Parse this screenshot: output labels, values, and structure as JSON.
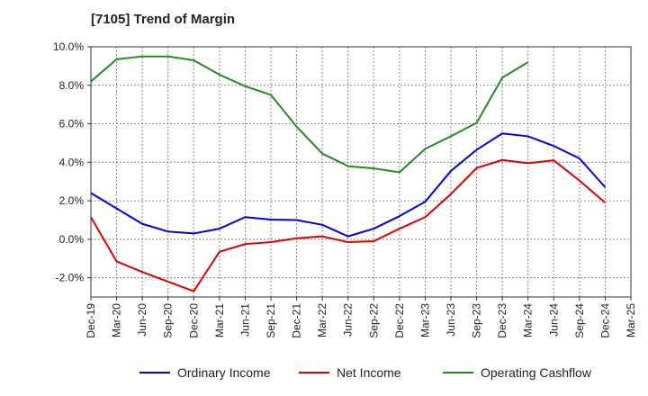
{
  "title": "[7105]  Trend of Margin",
  "chart_data": {
    "type": "line",
    "title": "[7105]  Trend of Margin",
    "xlabel": "",
    "ylabel": "",
    "x": [
      "Dec-19",
      "Mar-20",
      "Jun-20",
      "Sep-20",
      "Dec-20",
      "Mar-21",
      "Jun-21",
      "Sep-21",
      "Dec-21",
      "Mar-22",
      "Jun-22",
      "Sep-22",
      "Dec-22",
      "Mar-23",
      "Jun-23",
      "Sep-23",
      "Dec-23",
      "Mar-24",
      "Jun-24",
      "Sep-24",
      "Dec-24",
      "Mar-25"
    ],
    "y_ticks": [
      10.0,
      8.0,
      6.0,
      4.0,
      2.0,
      0.0,
      -2.0
    ],
    "y_tick_labels": [
      "10.0%",
      "8.0%",
      "6.0%",
      "4.0%",
      "2.0%",
      "0.0%",
      "-2.0%"
    ],
    "ylim": [
      -3.0,
      10.0
    ],
    "grid": true,
    "legend_position": "bottom",
    "series": [
      {
        "name": "Ordinary Income",
        "color": "#0000dd",
        "values": [
          2.4,
          1.6,
          0.8,
          0.4,
          0.3,
          0.55,
          1.15,
          1.02,
          1.0,
          0.75,
          0.15,
          0.55,
          1.2,
          1.95,
          3.55,
          4.65,
          5.5,
          5.35,
          4.85,
          4.2,
          2.7,
          null
        ]
      },
      {
        "name": "Net Income",
        "color": "#dd0000",
        "values": [
          1.15,
          -1.15,
          -1.7,
          -2.2,
          -2.7,
          -0.65,
          -0.25,
          -0.15,
          0.05,
          0.15,
          -0.15,
          -0.1,
          0.55,
          1.15,
          2.35,
          3.7,
          4.12,
          3.95,
          4.1,
          3.05,
          1.9,
          null
        ]
      },
      {
        "name": "Operating Cashflow",
        "color": "#228b22",
        "values": [
          8.2,
          9.35,
          9.5,
          9.5,
          9.3,
          8.55,
          7.95,
          7.5,
          5.85,
          4.45,
          3.8,
          3.68,
          3.48,
          4.7,
          5.35,
          6.05,
          8.4,
          9.2,
          null,
          null,
          null,
          null
        ]
      }
    ]
  }
}
